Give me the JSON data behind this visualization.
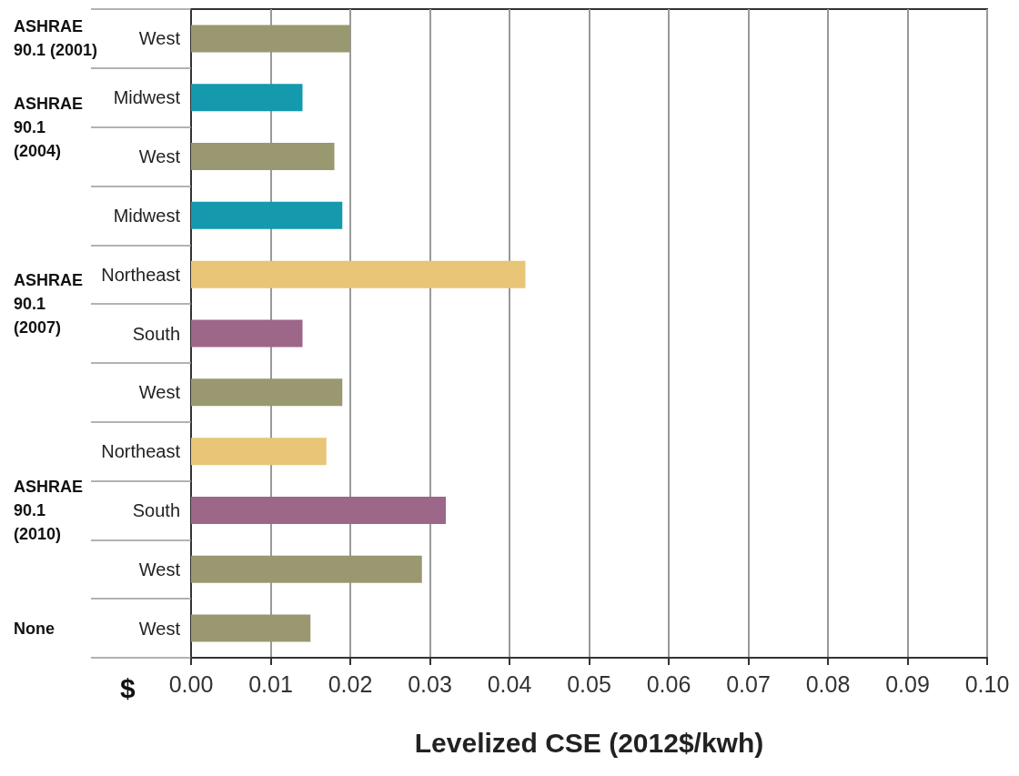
{
  "chart_data": {
    "type": "bar",
    "orientation": "horizontal",
    "xlabel": "Levelized CSE (2012$/kwh)",
    "categories": [
      "West",
      "Midwest",
      "West",
      "Midwest",
      "Northeast",
      "South",
      "West",
      "Northeast",
      "South",
      "West",
      "West"
    ],
    "values": [
      0.02,
      0.014,
      0.018,
      0.019,
      0.042,
      0.014,
      0.019,
      0.017,
      0.032,
      0.029,
      0.015
    ],
    "colors": [
      "#999870",
      "#1499ad",
      "#999870",
      "#1499ad",
      "#e8c577",
      "#9c6789",
      "#999870",
      "#e8c577",
      "#9c6789",
      "#999870",
      "#999870"
    ],
    "xlim": [
      0,
      0.1
    ],
    "xticks": [
      {
        "value": 0,
        "label": "0.00"
      },
      {
        "value": 0.01,
        "label": "0.01"
      },
      {
        "value": 0.02,
        "label": "0.02"
      },
      {
        "value": 0.03,
        "label": "0.03"
      },
      {
        "value": 0.04,
        "label": "0.04"
      },
      {
        "value": 0.05,
        "label": "0.05"
      },
      {
        "value": 0.06,
        "label": "0.06"
      },
      {
        "value": 0.07,
        "label": "0.07"
      },
      {
        "value": 0.08,
        "label": "0.08"
      },
      {
        "value": 0.09,
        "label": "0.09"
      },
      {
        "value": 0.1,
        "label": "0.10"
      }
    ],
    "grid": "x",
    "annotations": [
      "ASHRAE 90.1 (2001)",
      "ASHRAE 90.1 (2004)",
      "ASHRAE 90.1 (2007)",
      "ASHRAE 90.1 (2010)",
      "None",
      "$"
    ]
  }
}
